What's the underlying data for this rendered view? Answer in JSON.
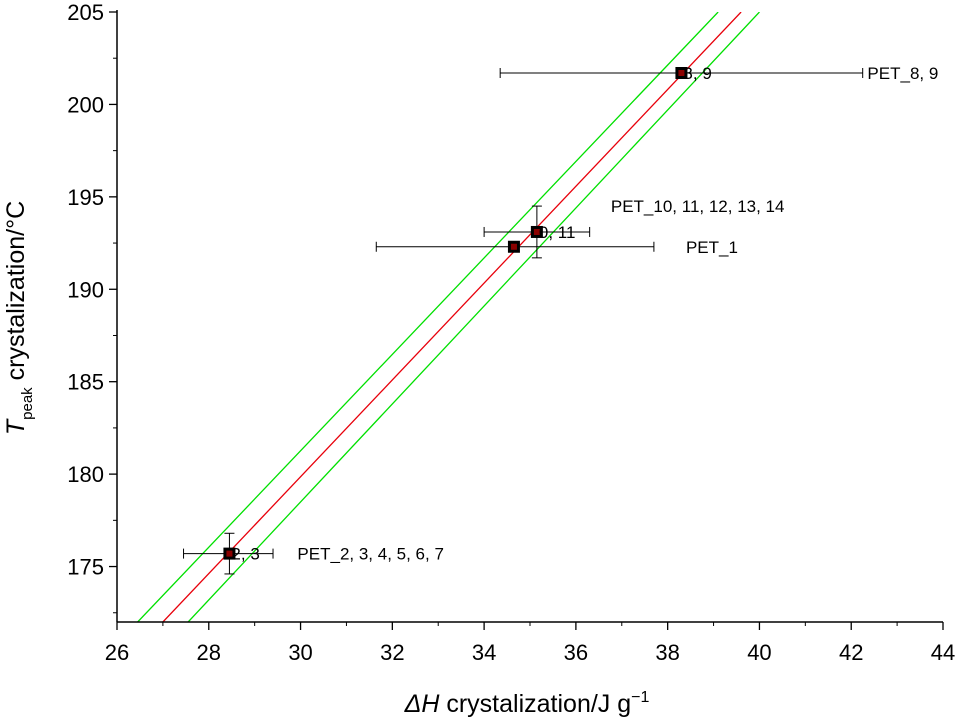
{
  "chart_data": {
    "type": "scatter",
    "xlabel": {
      "symbol": "ΔH",
      "rest": " crystalization/J g",
      "sup": "−1"
    },
    "ylabel": {
      "symbol": "T",
      "sub": "peak",
      "rest": " crystalization/°C"
    },
    "xlim": [
      26,
      44
    ],
    "ylim": [
      172,
      205
    ],
    "xticks": [
      26,
      28,
      30,
      32,
      34,
      36,
      38,
      40,
      42,
      44
    ],
    "yticks": [
      175,
      180,
      185,
      190,
      195,
      200,
      205
    ],
    "grid": false,
    "points": [
      {
        "x": 28.45,
        "y": 175.7,
        "xerr": [
          27.45,
          29.4
        ],
        "yerr": [
          174.6,
          176.8
        ],
        "label": "2, 3",
        "series_label": "PET_2, 3, 4, 5, 6, 7"
      },
      {
        "x": 34.65,
        "y": 192.3,
        "xerr": [
          31.65,
          37.7
        ],
        "yerr": null,
        "label": "",
        "series_label": "PET_1"
      },
      {
        "x": 35.15,
        "y": 193.1,
        "xerr": [
          34.0,
          36.3
        ],
        "yerr": [
          191.7,
          194.5
        ],
        "label": "0, 11",
        "series_label": "PET_10, 11, 12, 13, 14"
      },
      {
        "x": 38.3,
        "y": 201.7,
        "xerr": [
          34.35,
          42.25
        ],
        "yerr": null,
        "label": "3, 9",
        "series_label": "PET_8, 9"
      }
    ],
    "fit_line": {
      "color": "#e8000b",
      "x": [
        27.0,
        39.6
      ],
      "y": [
        172,
        205
      ]
    },
    "confidence_band": {
      "color": "#00e000",
      "upper": {
        "x": [
          26.45,
          39.1
        ],
        "y": [
          172,
          205
        ]
      },
      "lower": {
        "x": [
          27.55,
          40.0
        ],
        "y": [
          172,
          205
        ]
      }
    }
  }
}
